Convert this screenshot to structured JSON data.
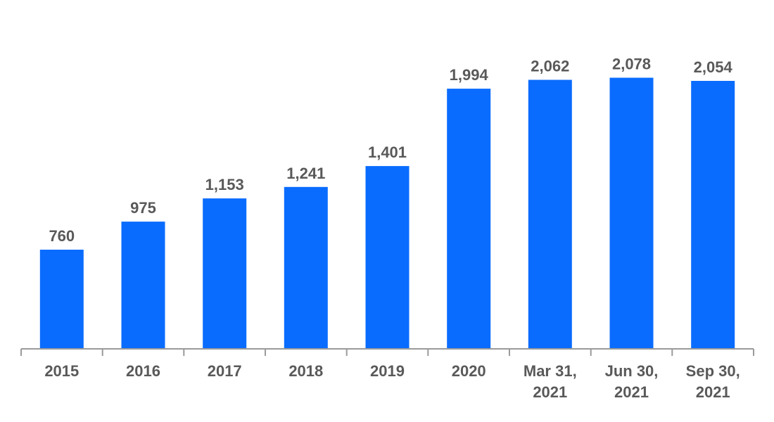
{
  "chart_data": {
    "type": "bar",
    "categories": [
      "2015",
      "2016",
      "2017",
      "2018",
      "2019",
      "2020",
      "Mar 31,\n2021",
      "Jun 30,\n2021",
      "Sep 30,\n2021"
    ],
    "values": [
      760,
      975,
      1153,
      1241,
      1401,
      1994,
      2062,
      2078,
      2054
    ],
    "data_labels": [
      "760",
      "975",
      "1,153",
      "1,241",
      "1,401",
      "1,994",
      "2,062",
      "2,078",
      "2,054"
    ],
    "title": "",
    "xlabel": "",
    "ylabel": "",
    "ylim": [
      0,
      2200
    ],
    "grid": false,
    "legend": "none",
    "bar_color": "#0a6cff",
    "label_color": "#595959",
    "axis_color": "#9a9a9a"
  }
}
